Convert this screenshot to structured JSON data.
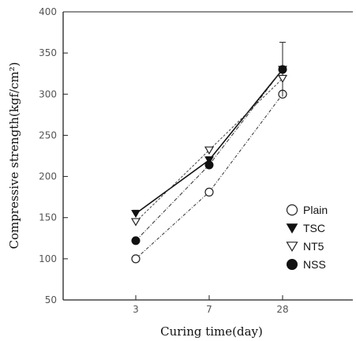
{
  "chart_data": {
    "type": "line",
    "xlabel": "Curing time(day)",
    "ylabel": "Compressive strength(kgf/cm²)",
    "x": [
      "3",
      "7",
      "28"
    ],
    "ylim": [
      50,
      400
    ],
    "yticks": [
      50,
      100,
      150,
      200,
      250,
      300,
      350,
      400
    ],
    "grid": false,
    "legend": "right",
    "series": [
      {
        "name": "Plain",
        "marker": "open-circle",
        "values": [
          100,
          181,
          300
        ]
      },
      {
        "name": "TSC",
        "marker": "filled-triangle",
        "values": [
          155,
          220,
          330
        ],
        "error": [
          4,
          4,
          33
        ]
      },
      {
        "name": "NT5",
        "marker": "open-triangle",
        "values": [
          145,
          232,
          319
        ]
      },
      {
        "name": "NSS",
        "marker": "filled-circle",
        "values": [
          122,
          214,
          330
        ]
      }
    ]
  }
}
